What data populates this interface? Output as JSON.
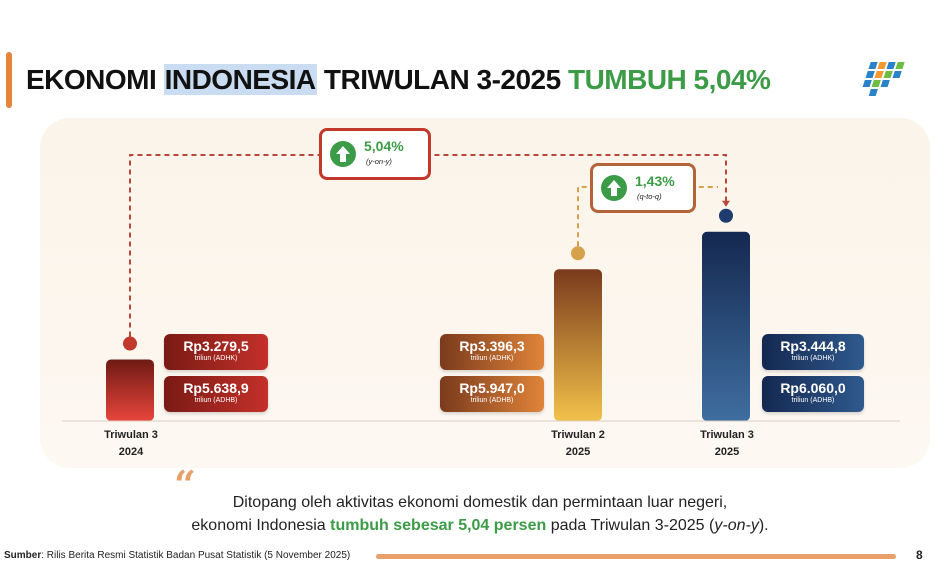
{
  "title": {
    "part1": "EKONOMI ",
    "highlight": "INDONESIA",
    "part2": " TRIWULAN 3-2025 ",
    "green": "TUMBUH 5,04%"
  },
  "logo_icon": "bps-logo-icon",
  "growth": {
    "yoy": {
      "value": "5,04%",
      "label": "(y-on-y)"
    },
    "qtq": {
      "value": "1,43%",
      "label": "(q-to-q)"
    }
  },
  "chart_data": {
    "type": "bar",
    "categories": [
      "Triwulan 3 2024",
      "Triwulan 2 2025",
      "Triwulan 3 2025"
    ],
    "category_labels": [
      {
        "line1": "Triwulan 3",
        "line2": "2024"
      },
      {
        "line1": "Triwulan 2",
        "line2": "2025"
      },
      {
        "line1": "Triwulan 3",
        "line2": "2025"
      }
    ],
    "series": [
      {
        "name": "ADHK",
        "values": [
          3279.5,
          3396.3,
          3444.8
        ]
      },
      {
        "name": "ADHB",
        "values": [
          5638.9,
          5947.0,
          6060.0
        ]
      }
    ],
    "ylim": [
      3200,
      3460
    ],
    "labels": [
      {
        "adhk": "Rp3.279,5",
        "adhk_unit": "triliun (ADHK)",
        "adhb": "Rp5.638,9",
        "adhb_unit": "triliun (ADHB)"
      },
      {
        "adhk": "Rp3.396,3",
        "adhk_unit": "triliun (ADHK)",
        "adhb": "Rp5.947,0",
        "adhb_unit": "triliun (ADHB)"
      },
      {
        "adhk": "Rp3.444,8",
        "adhk_unit": "triliun (ADHK)",
        "adhb": "Rp6.060,0",
        "adhb_unit": "triliun (ADHB)"
      }
    ],
    "colors": {
      "bar1_top": "#6e1a14",
      "bar1_bottom": "#e8453c",
      "bar2_top": "#7a3a1c",
      "bar2_bottom": "#f2c14a",
      "bar3_top": "#142850",
      "bar3_bottom": "#3f6ea0"
    }
  },
  "quote": {
    "line1": "Ditopang oleh aktivitas ekonomi domestik dan permintaan luar negeri,",
    "line2_a": "ekonomi Indonesia ",
    "line2_green": "tumbuh sebesar 5,04 persen",
    "line2_b": " pada Triwulan 3-2025 (",
    "line2_italic": "y-on-y",
    "line2_c": ")."
  },
  "footer": {
    "source_label": "Sumber",
    "source_text": ": Rilis Berita Resmi Statistik Badan Pusat Statistik (5 November 2025)",
    "page": "8"
  },
  "colors": {
    "accent": "#e8833a",
    "green": "#3c9b46",
    "highlight": "#c9dcf2"
  }
}
